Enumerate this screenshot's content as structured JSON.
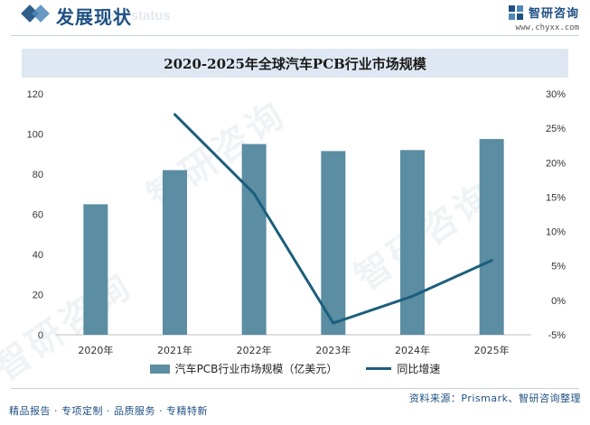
{
  "header": {
    "section_title": "发展现状",
    "section_subtitle": "ent status",
    "brand_name": "智研咨询",
    "brand_url": "www.chyxx.com"
  },
  "watermark_text": "智研咨询",
  "chart_data": {
    "type": "bar",
    "title": "2020-2025年全球汽车PCB行业市场规模",
    "categories": [
      "2020年",
      "2021年",
      "2022年",
      "2023年",
      "2024年",
      "2025年"
    ],
    "series": [
      {
        "name": "汽车PCB行业市场规模（亿美元）",
        "type": "bar",
        "axis": "left",
        "values": [
          65,
          82,
          95,
          91.5,
          92,
          97.5
        ]
      },
      {
        "name": "同比增速",
        "type": "line",
        "axis": "right",
        "values": [
          null,
          27,
          15.5,
          -3.3,
          0.6,
          5.8
        ]
      }
    ],
    "y_left": {
      "min": 0,
      "max": 120,
      "ticks": [
        "0",
        "20",
        "40",
        "60",
        "80",
        "100",
        "120"
      ]
    },
    "y_right": {
      "min": -5,
      "max": 30,
      "ticks": [
        "-5%",
        "0%",
        "5%",
        "10%",
        "15%",
        "20%",
        "25%",
        "30%"
      ]
    },
    "colors": {
      "bar": "#5b8da3",
      "line": "#1c5f7c"
    },
    "legend_position": "bottom"
  },
  "footer": {
    "left": "精品报告 · 专项定制 · 品质服务 · 专精特新",
    "right": "资料来源：Prismark、智研咨询整理"
  }
}
